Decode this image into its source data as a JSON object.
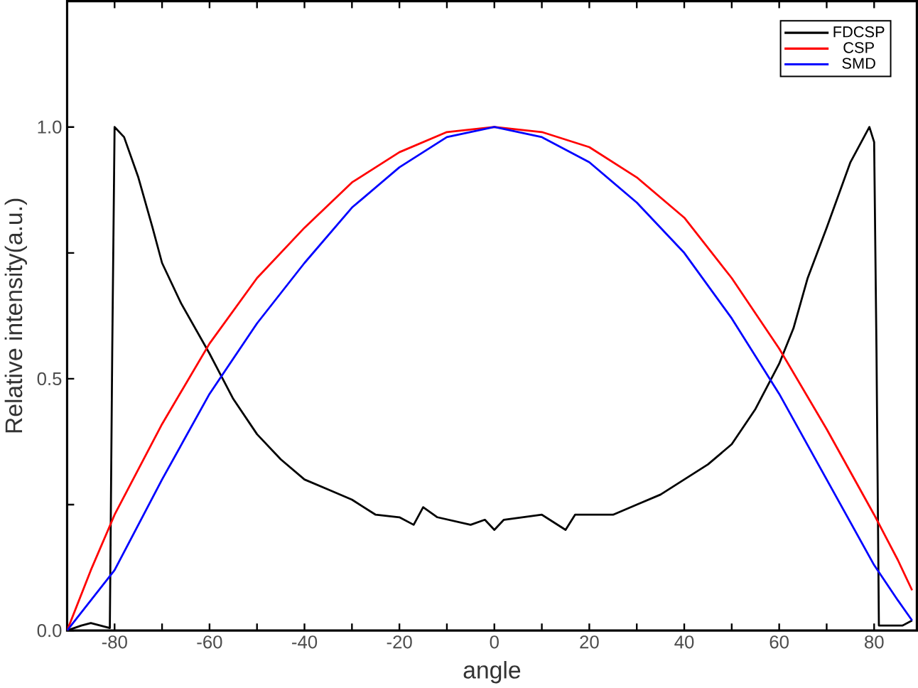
{
  "chart_data": {
    "type": "line",
    "xlabel": "angle",
    "ylabel": "Relative intensity(a.u.)",
    "xlim": [
      -90,
      89
    ],
    "ylim": [
      0,
      1.25
    ],
    "xticks": [
      -80,
      {
        "value": -70,
        "label": null
      },
      -60,
      {
        "value": -50,
        "label": null
      },
      -40,
      {
        "value": -30,
        "label": null
      },
      -20,
      {
        "value": -10,
        "label": null
      },
      0,
      {
        "value": 10,
        "label": null
      },
      20,
      {
        "value": 30,
        "label": null
      },
      40,
      {
        "value": 50,
        "label": null
      },
      60,
      {
        "value": 70,
        "label": null
      },
      80
    ],
    "yticks": [
      {
        "value": 0,
        "label": "0.0"
      },
      {
        "value": 0.25,
        "label": null
      },
      {
        "value": 0.5,
        "label": "0.5"
      },
      {
        "value": 0.75,
        "label": null
      },
      {
        "value": 1.0,
        "label": "1.0"
      }
    ],
    "legend": "top right",
    "grid": false,
    "series": [
      {
        "name": "FDCSP",
        "color": "#000000",
        "x": [
          -90,
          -87,
          -85,
          -81,
          -80.5,
          -80,
          -78,
          -75,
          -72,
          -70,
          -66,
          -60,
          -55,
          -50,
          -45,
          -40,
          -35,
          -30,
          -25,
          -20,
          -17,
          -15,
          -12,
          -5,
          -2,
          0,
          2,
          10,
          15,
          17,
          25,
          30,
          35,
          40,
          45,
          50,
          55,
          60,
          63,
          66,
          70,
          75,
          79,
          80,
          80.5,
          81,
          86,
          88
        ],
        "values": [
          0,
          0.01,
          0.015,
          0.005,
          0.55,
          1.0,
          0.98,
          0.9,
          0.8,
          0.73,
          0.65,
          0.55,
          0.46,
          0.39,
          0.34,
          0.3,
          0.28,
          0.26,
          0.23,
          0.225,
          0.21,
          0.245,
          0.225,
          0.21,
          0.22,
          0.2,
          0.22,
          0.23,
          0.2,
          0.23,
          0.23,
          0.25,
          0.27,
          0.3,
          0.33,
          0.37,
          0.44,
          0.53,
          0.6,
          0.7,
          0.8,
          0.93,
          1.0,
          0.97,
          0.55,
          0.01,
          0.01,
          0.02
        ]
      },
      {
        "name": "CSP",
        "color": "#ff0000",
        "x": [
          -90,
          -85,
          -80,
          -70,
          -60,
          -50,
          -40,
          -30,
          -20,
          -10,
          0,
          10,
          20,
          30,
          40,
          50,
          60,
          70,
          80,
          85,
          88
        ],
        "values": [
          0,
          0.12,
          0.23,
          0.41,
          0.57,
          0.7,
          0.8,
          0.89,
          0.95,
          0.99,
          1.0,
          0.99,
          0.96,
          0.9,
          0.82,
          0.7,
          0.56,
          0.4,
          0.23,
          0.14,
          0.08
        ]
      },
      {
        "name": "SMD",
        "color": "#0000ff",
        "x": [
          -90,
          -85,
          -80,
          -70,
          -60,
          -50,
          -40,
          -30,
          -20,
          -10,
          0,
          10,
          20,
          30,
          40,
          50,
          60,
          70,
          80,
          85,
          88
        ],
        "values": [
          0,
          0.06,
          0.12,
          0.3,
          0.47,
          0.61,
          0.73,
          0.84,
          0.92,
          0.98,
          1.0,
          0.98,
          0.93,
          0.85,
          0.75,
          0.62,
          0.47,
          0.3,
          0.13,
          0.06,
          0.02
        ]
      }
    ]
  }
}
